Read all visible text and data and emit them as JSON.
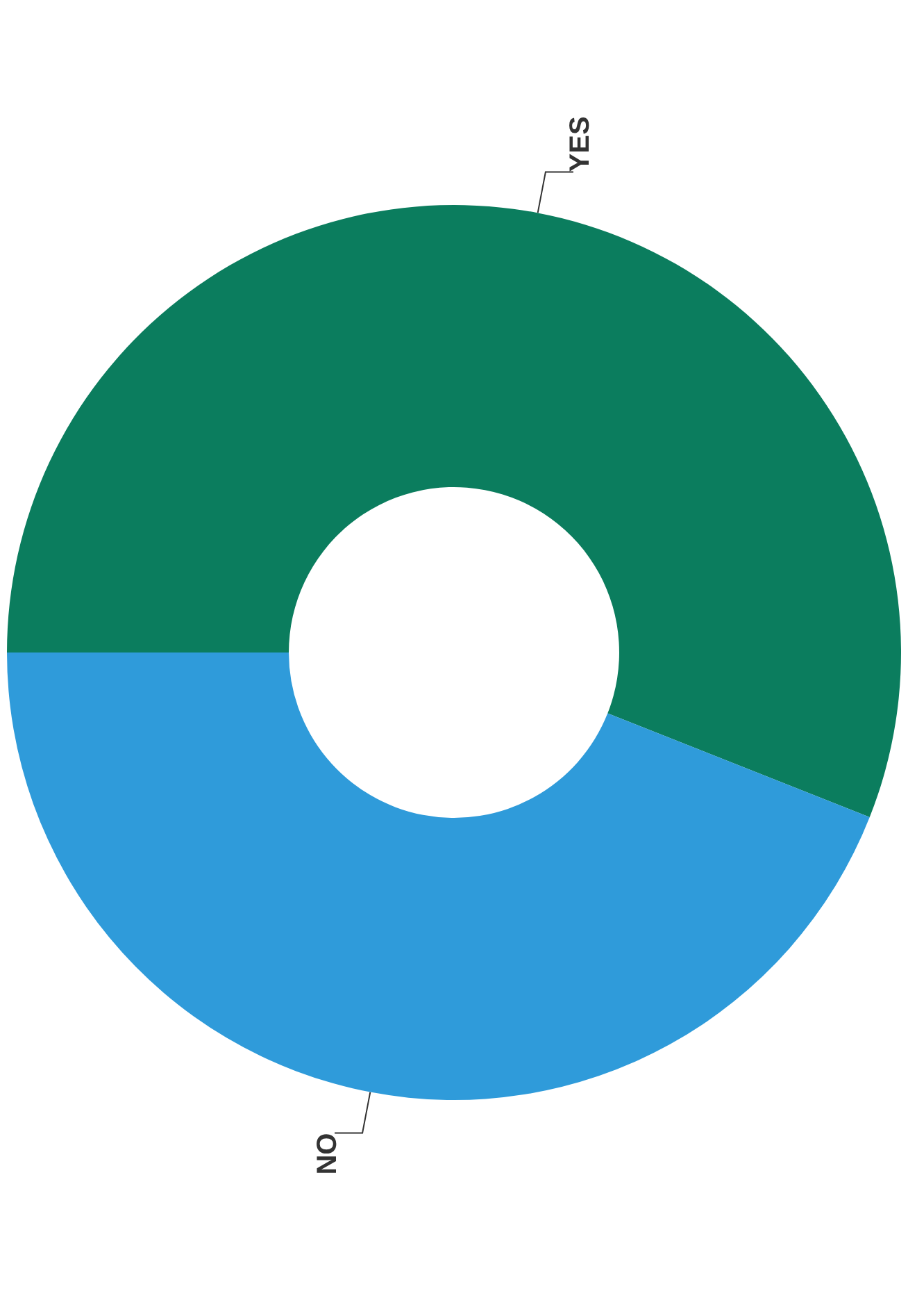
{
  "chart_data": {
    "type": "donut",
    "categories": [
      "YES",
      "NO"
    ],
    "values": [
      56,
      44
    ],
    "colors": [
      "#0b7d5e",
      "#2f9bda"
    ],
    "legend": false
  }
}
